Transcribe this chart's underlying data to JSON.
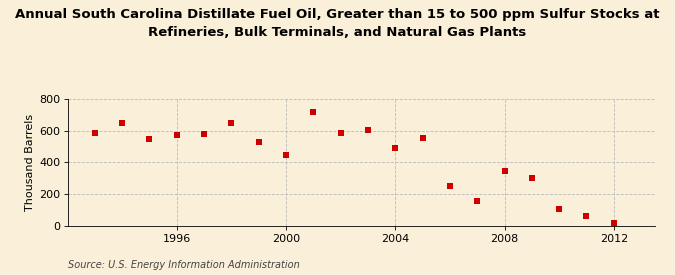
{
  "title": "Annual South Carolina Distillate Fuel Oil, Greater than 15 to 500 ppm Sulfur Stocks at\nRefineries, Bulk Terminals, and Natural Gas Plants",
  "ylabel": "Thousand Barrels",
  "source": "Source: U.S. Energy Information Administration",
  "background_color": "#faefd8",
  "marker_color": "#cc0000",
  "years": [
    1993,
    1994,
    1995,
    1996,
    1997,
    1998,
    1999,
    2000,
    2001,
    2002,
    2003,
    2004,
    2005,
    2006,
    2007,
    2008,
    2009,
    2010,
    2011,
    2012
  ],
  "values": [
    585,
    648,
    550,
    570,
    580,
    650,
    525,
    448,
    720,
    585,
    605,
    490,
    555,
    248,
    155,
    343,
    303,
    105,
    62,
    18
  ],
  "ylim": [
    0,
    800
  ],
  "yticks": [
    0,
    200,
    400,
    600,
    800
  ],
  "xticks": [
    1996,
    2000,
    2004,
    2008,
    2012
  ],
  "xlim": [
    1992.0,
    2013.5
  ],
  "grid_color": "#bbbbbb",
  "title_fontsize": 9.5,
  "axis_fontsize": 8,
  "tick_fontsize": 8,
  "source_fontsize": 7
}
